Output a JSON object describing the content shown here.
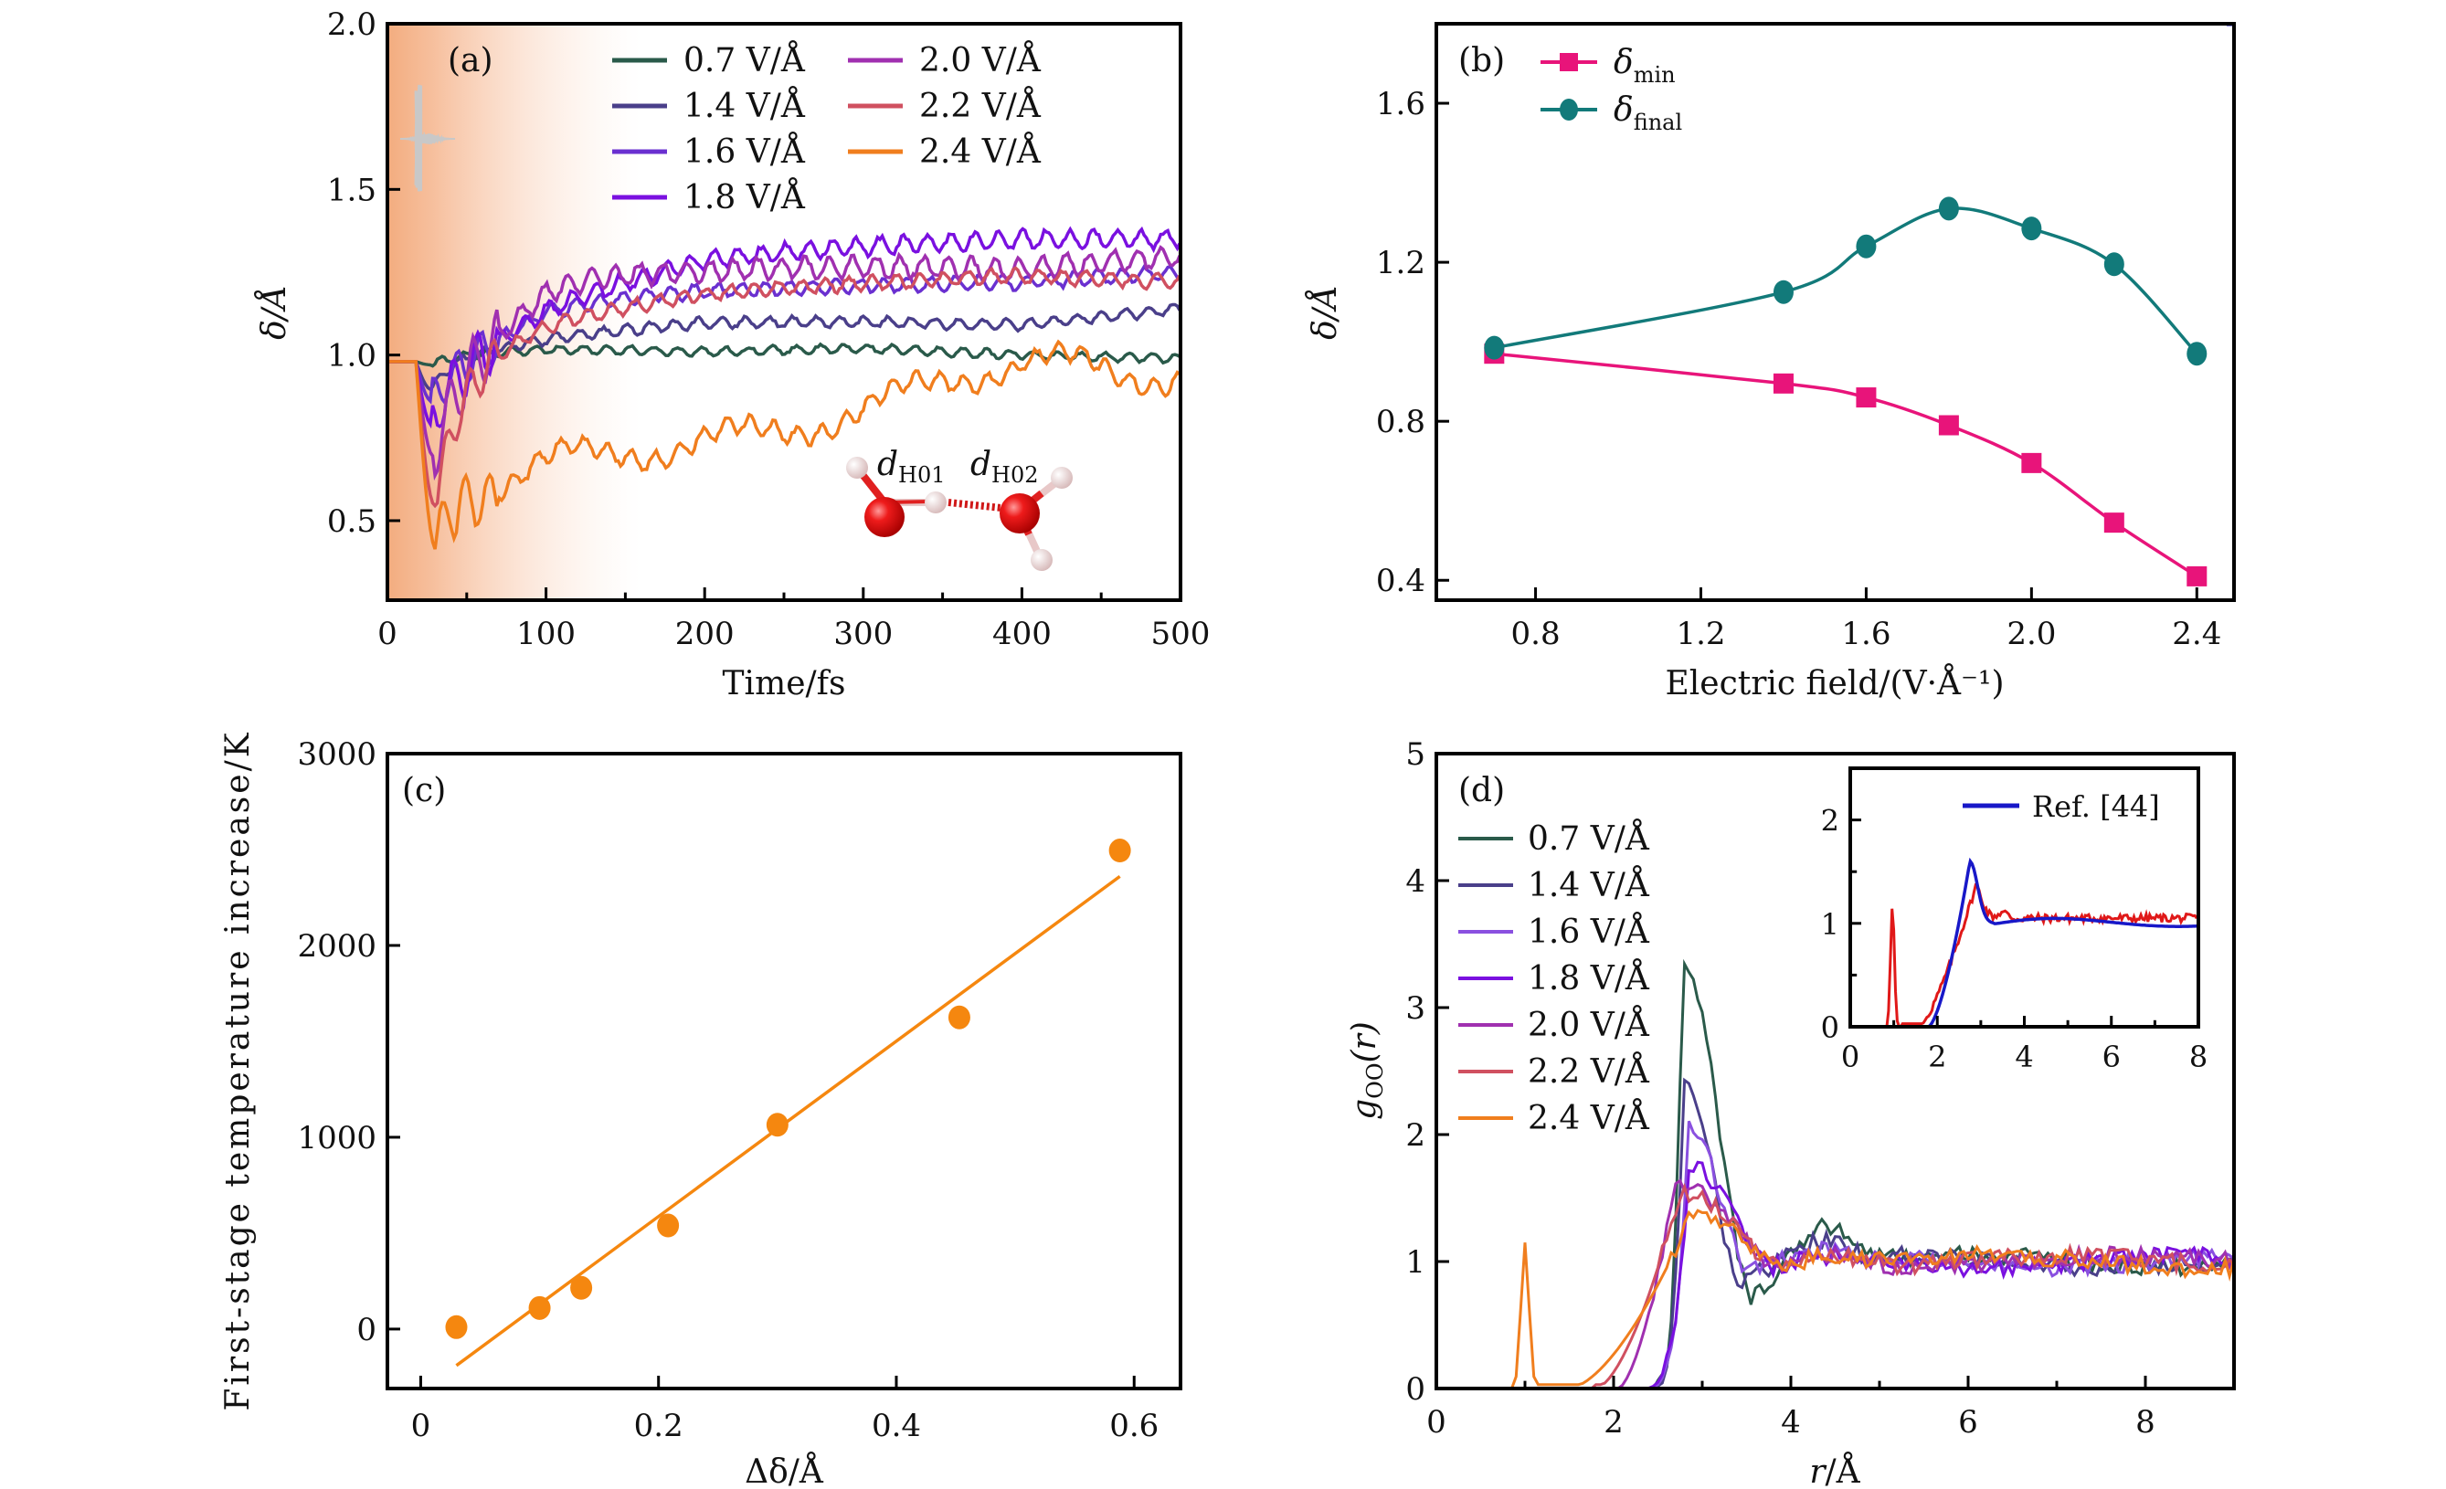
{
  "figure": {
    "panels": [
      "(a)",
      "(b)",
      "(c)",
      "(d)"
    ]
  },
  "chart_data": [
    {
      "id": "a",
      "type": "line",
      "panel_label": "(a)",
      "title": "",
      "xlabel": "Time/fs",
      "ylabel": "δ/Å",
      "xlim": [
        0,
        500
      ],
      "ylim": [
        0.26,
        2.0
      ],
      "xticks": [
        0,
        100,
        200,
        300,
        400,
        500
      ],
      "yticks": [
        0.5,
        1.0,
        1.5,
        2.0
      ],
      "ytick_labels": [
        "0.5",
        "1.0",
        "1.5",
        "2.0"
      ],
      "legend_position": "top-right",
      "shaded_region": {
        "from": 0,
        "to": 160,
        "color": "#f2a878",
        "description": "laser pulse duration"
      },
      "pulse_icon": "laser-pulse-waveform-icon",
      "annotation": {
        "labels": [
          "d_H01",
          "d_H02"
        ],
        "main": "d",
        "subs": [
          "H01",
          "H02"
        ],
        "image": "water-dimer-molecule"
      },
      "series": [
        {
          "name": "0.7 V/Å",
          "color": "#2a5a4a",
          "dip_at": 28,
          "dip_min": 0.97,
          "plateau": [
            1.0,
            1.02,
            1.01,
            1.02,
            1.0,
            0.99
          ],
          "osc": 0.012
        },
        {
          "name": "1.4 V/Å",
          "color": "#4a3f8a",
          "dip_at": 28,
          "dip_min": 0.895,
          "plateau": [
            1.0,
            1.06,
            1.1,
            1.1,
            1.09,
            1.14
          ],
          "osc": 0.015
        },
        {
          "name": "1.6 V/Å",
          "color": "#6a30d0",
          "dip_at": 28,
          "dip_min": 0.86,
          "plateau": [
            1.0,
            1.18,
            1.2,
            1.21,
            1.22,
            1.25
          ],
          "osc": 0.02
        },
        {
          "name": "1.8 V/Å",
          "color": "#7a10e0",
          "dip_at": 28,
          "dip_min": 0.79,
          "plateau": [
            1.0,
            1.2,
            1.3,
            1.33,
            1.35,
            1.35
          ],
          "osc": 0.025
        },
        {
          "name": "2.0 V/Å",
          "color": "#a030b0",
          "dip_at": 29,
          "dip_min": 0.695,
          "plateau": [
            1.0,
            1.3,
            1.27,
            1.27,
            1.26,
            1.3
          ],
          "osc": 0.03
        },
        {
          "name": "2.2 V/Å",
          "color": "#d05060",
          "dip_at": 30,
          "dip_min": 0.545,
          "plateau": [
            1.0,
            1.15,
            1.2,
            1.22,
            1.24,
            1.22
          ],
          "osc": 0.02
        },
        {
          "name": "2.4 V/Å",
          "color": "#f07e1e",
          "dip_at": 31,
          "dip_min": 0.41,
          "plateau": [
            0.55,
            0.78,
            0.83,
            0.86,
            0.97,
            0.97
          ],
          "osc": 0.025
        }
      ]
    },
    {
      "id": "b",
      "type": "line",
      "panel_label": "(b)",
      "title": "",
      "xlabel": "Electric field/(V·Å⁻¹)",
      "ylabel": "δ/Å",
      "xlim": [
        0.56,
        2.49
      ],
      "ylim": [
        0.35,
        1.8
      ],
      "xticks": [
        0.8,
        1.2,
        1.6,
        2.0,
        2.4
      ],
      "xtick_labels": [
        "0.8",
        "1.2",
        "1.6",
        "2.0",
        "2.4"
      ],
      "yticks": [
        0.4,
        0.8,
        1.2,
        1.6
      ],
      "ytick_labels": [
        "0.4",
        "0.8",
        "1.2",
        "1.6"
      ],
      "legend_position": "top-left",
      "x": [
        0.7,
        1.4,
        1.6,
        1.8,
        2.0,
        2.2,
        2.4
      ],
      "series": [
        {
          "name": "δmin",
          "main": "δ",
          "sub": "min",
          "color": "#e8147a",
          "marker": "square",
          "values": [
            0.97,
            0.895,
            0.86,
            0.79,
            0.695,
            0.545,
            0.41
          ]
        },
        {
          "name": "δfinal",
          "main": "δ",
          "sub": "final",
          "color": "#127a7a",
          "marker": "circle",
          "values": [
            0.985,
            1.125,
            1.24,
            1.335,
            1.285,
            1.195,
            0.97
          ]
        }
      ]
    },
    {
      "id": "c",
      "type": "scatter",
      "panel_label": "(c)",
      "title": "",
      "xlabel": "Δδ/Å",
      "ylabel": "First-stage temperature increase/K",
      "xlim": [
        -0.028,
        0.639
      ],
      "ylim": [
        -310,
        3000
      ],
      "xticks": [
        0,
        0.2,
        0.4,
        0.6
      ],
      "xtick_labels": [
        "0",
        "0.2",
        "0.4",
        "0.6"
      ],
      "yticks": [
        0,
        1000,
        2000,
        3000
      ],
      "ytick_labels": [
        "0",
        "1000",
        "2000",
        "3000"
      ],
      "color": "#f5870f",
      "points": {
        "x": [
          0.03,
          0.1,
          0.135,
          0.208,
          0.3,
          0.453,
          0.588
        ],
        "y": [
          10,
          110,
          215,
          540,
          1065,
          1625,
          2495
        ]
      },
      "fit_line": {
        "x": [
          0.03,
          0.588
        ],
        "y": [
          -190,
          2360
        ]
      }
    },
    {
      "id": "d",
      "type": "line",
      "panel_label": "(d)",
      "title": "",
      "xlabel": "r/Å",
      "ylabel": "gOO(r)",
      "ylabel_main": "g",
      "ylabel_sub": "OO",
      "ylabel_arg": "(r)",
      "xlim": [
        0,
        9
      ],
      "ylim": [
        0,
        5
      ],
      "xticks": [
        0,
        2,
        4,
        6,
        8
      ],
      "yticks": [
        0,
        1,
        2,
        3,
        4,
        5
      ],
      "legend_position": "top-left",
      "series": [
        {
          "name": "0.7 V/Å",
          "color": "#2a5a4a",
          "onset": 2.45,
          "peak_r": 2.78,
          "peak": 3.33,
          "min_r": 3.55,
          "min": 0.7,
          "second_peak": 1.27
        },
        {
          "name": "1.4 V/Å",
          "color": "#4a3f8a",
          "onset": 2.4,
          "peak_r": 2.8,
          "peak": 2.45,
          "min_r": 3.4,
          "min": 0.85,
          "second_peak": 1.15
        },
        {
          "name": "1.6 V/Å",
          "color": "#8a50e0",
          "onset": 2.35,
          "peak_r": 2.85,
          "peak": 2.05,
          "min_r": 3.5,
          "min": 0.95,
          "second_peak": 1.08
        },
        {
          "name": "1.8 V/Å",
          "color": "#7a10e0",
          "onset": 2.3,
          "peak_r": 2.85,
          "peak": 1.75,
          "min_r": 3.8,
          "min": 0.95,
          "second_peak": 1.05
        },
        {
          "name": "2.0 V/Å",
          "color": "#a030b0",
          "onset": 2.05,
          "peak_r": 2.7,
          "peak": 1.62,
          "min_r": 3.9,
          "min": 0.95,
          "second_peak": 1.05
        },
        {
          "name": "2.2 V/Å",
          "color": "#d05060",
          "onset": 1.8,
          "peak_r": 2.75,
          "peak": 1.55,
          "min_r": 3.9,
          "min": 0.95,
          "second_peak": 1.05
        },
        {
          "name": "2.4 V/Å",
          "color": "#f07e1e",
          "onset": 1.5,
          "peak_r": 2.9,
          "peak": 1.4,
          "min_r": 3.9,
          "min": 0.95,
          "second_peak": 1.05,
          "pre_peak_r": 1.0,
          "pre_peak": 1.15
        }
      ],
      "inset": {
        "xlim": [
          0,
          8
        ],
        "ylim": [
          0,
          2.5
        ],
        "xticks": [
          0,
          2,
          4,
          6,
          8
        ],
        "yticks": [
          0,
          1,
          2
        ],
        "legend_position": "top-right",
        "series": [
          {
            "name": "",
            "color": "#e01818",
            "pre_peak_r": 0.97,
            "pre_peak": 1.17,
            "peak_r": 2.9,
            "peak": 1.38
          },
          {
            "name": "Ref. [44]",
            "color": "#1818c8",
            "peak_r": 2.75,
            "peak": 1.6
          }
        ]
      }
    }
  ]
}
